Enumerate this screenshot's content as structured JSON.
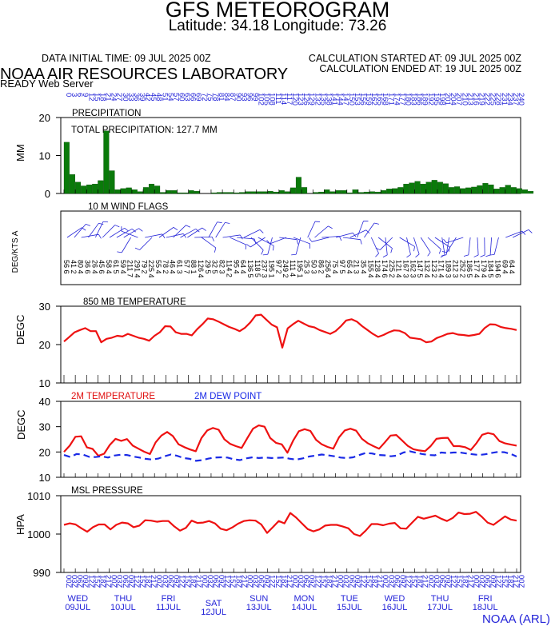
{
  "header": {
    "title": "GFS METEOROGRAM",
    "coords": "Latitude: 34.18 Longitude:  73.26",
    "data_initial_time": "DATA INITIAL TIME: 09 JUL 2025 00Z",
    "calc_started": "CALCULATION STARTED AT: 09 JUL 2025 00Z",
    "calc_ended": "CALCULATION ENDED AT: 19 JUL 2025 00Z",
    "lab": "NOAA AIR RESOURCES LABORATORY",
    "server": "READY Web Server"
  },
  "footer": {
    "credit": "NOAA (ARL)"
  },
  "chart_data": [
    {
      "type": "bar",
      "title": "PRECIPITATION",
      "annotation": "TOTAL PRECIPITATION: 127.7 MM",
      "ylabel": "MM",
      "ylim": [
        0,
        20
      ],
      "yticks": [
        0,
        10,
        20
      ],
      "x_step_hours": 3,
      "values": [
        13.5,
        5.0,
        3.0,
        2.0,
        2.3,
        2.5,
        3.4,
        16.5,
        6.0,
        1.0,
        1.3,
        1.5,
        1.0,
        0.5,
        1.6,
        2.5,
        2.0,
        0.3,
        0.8,
        0.8,
        0.2,
        0.2,
        0.8,
        0.6,
        0,
        0,
        0.2,
        0.3,
        0.3,
        0.3,
        0.2,
        0.3,
        0.5,
        0.5,
        0.5,
        0.5,
        0.6,
        0.4,
        0.8,
        0.5,
        1.5,
        4.3,
        1.6,
        0,
        0.3,
        0.4,
        1.0,
        0.5,
        0.8,
        0.8,
        0.2,
        1.0,
        0.3,
        0.4,
        0.5,
        0.4,
        0.8,
        1.2,
        1.3,
        1.6,
        2.5,
        2.8,
        3.2,
        2.5,
        3.0,
        3.5,
        3.0,
        2.6,
        1.6,
        1.8,
        1.3,
        1.5,
        1.7,
        2.1,
        2.7,
        2.3,
        1.2,
        1.6,
        2.2,
        1.6,
        1.3,
        1.0,
        0.6
      ]
    },
    {
      "type": "wind_flags",
      "title": "10 M  WIND FLAGS",
      "ylabel": "DEG/KTS  A",
      "labels": [
        "56 6",
        "41 2",
        "80 4",
        "36 6",
        "26 4",
        "45 6",
        "58 4",
        "61 5",
        "59 4",
        "211 7",
        "291 4",
        "79 2",
        "225 4",
        "55 4",
        "78 2",
        "46 4",
        "61 3",
        "57 7",
        "88 1",
        "126 4",
        "29 5",
        "32 5",
        "82 3",
        "114 2",
        "95 4",
        "64 4",
        "136 5",
        "118 5",
        "237 3",
        "195 1",
        "97 2",
        "249 2",
        "111 4",
        "195 1",
        "25 3",
        "50 3",
        "86 2",
        "256 4",
        "75 4",
        "97 5",
        "65 4",
        "21 3",
        "35 4",
        "155 4",
        "128 4",
        "174 6",
        "225 2",
        "121 4",
        "167 3",
        "162 3",
        "147 5",
        "132 4",
        "123 2",
        "171 4",
        "189 3",
        "212 3",
        "252 2",
        "186 5",
        "177 4",
        "179 4",
        "184 5",
        "194 6",
        "69 4",
        "64 4"
      ]
    },
    {
      "type": "line",
      "title": "850 MB  TEMPERATURE",
      "ylabel": "DEGC",
      "ylim": [
        10,
        30
      ],
      "yticks": [
        10,
        20,
        30
      ],
      "series": [
        {
          "name": "850 MB TEMPERATURE",
          "color": "#ee1111",
          "values": [
            20.8,
            22,
            23.2,
            23.8,
            24.3,
            23.5,
            23.5,
            20.6,
            21.5,
            21.8,
            22.3,
            22.1,
            22.8,
            22.3,
            21.8,
            21.5,
            21.0,
            22.3,
            23.2,
            24.8,
            24.7,
            23.2,
            22.8,
            22.8,
            22.4,
            24.0,
            25.3,
            26.8,
            26.6,
            26.0,
            25.3,
            24.6,
            24.1,
            23.5,
            24.4,
            25.8,
            27.6,
            27.8,
            26.5,
            25.2,
            24.5,
            19.2,
            24.2,
            25.3,
            26.2,
            25.5,
            24.8,
            24.5,
            23.8,
            23.3,
            22.8,
            23.5,
            24.8,
            26.3,
            26.6,
            26.0,
            24.8,
            23.8,
            22.8,
            22.0,
            22.5,
            23.2,
            23.7,
            23.6,
            23.0,
            21.8,
            21.6,
            21.4,
            20.6,
            20.8,
            21.7,
            22.2,
            22.8,
            23.0,
            22.6,
            22.5,
            22.3,
            22.5,
            22.8,
            24.3,
            25.3,
            25.2,
            24.6,
            24.3,
            24.1,
            23.8
          ]
        }
      ]
    },
    {
      "type": "line",
      "ylabel": "DEGC",
      "ylim": [
        10,
        40
      ],
      "yticks": [
        10,
        20,
        30,
        40
      ],
      "series": [
        {
          "name": "2M TEMPERATURE",
          "color": "#ee1111",
          "values": [
            20,
            22.5,
            26.0,
            26.2,
            21.8,
            21.2,
            18.5,
            19.3,
            22.8,
            25.2,
            24.4,
            25.1,
            22.5,
            21.3,
            20.1,
            19.2,
            23.8,
            26.5,
            27.9,
            26.3,
            23.0,
            21.9,
            21.0,
            20.3,
            25.5,
            28.5,
            29.5,
            28.8,
            25.0,
            23.2,
            22.3,
            21.6,
            25.5,
            29.2,
            30.5,
            30.0,
            25.5,
            23.6,
            23.0,
            19.7,
            24.5,
            28.2,
            29.0,
            28.3,
            24.8,
            23.0,
            22.0,
            21.3,
            25.8,
            28.5,
            29.2,
            28.4,
            25.2,
            23.5,
            22.3,
            21.3,
            23.8,
            26.5,
            26.7,
            24.6,
            22.4,
            21.1,
            20.6,
            20.3,
            22.3,
            25.2,
            25.5,
            25.6,
            22.3,
            22.3,
            21.9,
            20.8,
            23.5,
            26.8,
            27.5,
            27.0,
            24.3,
            23.4,
            22.9,
            22.5
          ]
        },
        {
          "name": "2M  DEW POINT",
          "color": "#1a2ae6",
          "dashed": true,
          "values": [
            18.8,
            18.0,
            19.2,
            19.0,
            18.1,
            18.0,
            18.3,
            17.8,
            18.6,
            18.9,
            18.8,
            18.2,
            17.8,
            17.3,
            17.0,
            17.4,
            18.3,
            19.0,
            18.5,
            17.6,
            17.3,
            16.5,
            16.8,
            17.4,
            17.8,
            17.9,
            17.8,
            17.1,
            16.8,
            17.5,
            17.9,
            17.6,
            17.8,
            17.6,
            17.7,
            17.8,
            17.3,
            17.0,
            17.5,
            18.2,
            18.6,
            19.0,
            18.7,
            18.3,
            17.8,
            17.6,
            17.9,
            18.8,
            19.6,
            19.4,
            18.8,
            18.7,
            18.3,
            18.6,
            19.8,
            20.3,
            19.7,
            19.2,
            18.8,
            18.7,
            19.8,
            19.6,
            19.8,
            19.8,
            19.4,
            19.1,
            18.8,
            19.1,
            19.6,
            20.0,
            19.9,
            19.3,
            18.2
          ]
        }
      ]
    },
    {
      "type": "line",
      "title": "MSL PRESSURE",
      "ylabel": "HPA",
      "ylim": [
        990,
        1010
      ],
      "yticks": [
        990,
        1000,
        1010
      ],
      "series": [
        {
          "name": "MSL PRESSURE",
          "color": "#ee1111",
          "values": [
            1002.4,
            1002.8,
            1002.5,
            1001.5,
            1000.6,
            1001.8,
            1002.5,
            1002.5,
            1001.2,
            1002.4,
            1003.0,
            1002.8,
            1001.8,
            1002.2,
            1003.6,
            1003.5,
            1003.2,
            1003.4,
            1003.4,
            1002.0,
            1000.9,
            1001.6,
            1003.5,
            1002.9,
            1003.0,
            1003.4,
            1002.8,
            1001.4,
            1001.0,
            1001.7,
            1002.7,
            1003.4,
            1003.6,
            1003.5,
            1002.5,
            1000.3,
            1001.8,
            1003.4,
            1002.8,
            1005.5,
            1004.3,
            1002.8,
            1001.3,
            1000.7,
            1001.2,
            1002.2,
            1002.4,
            1002.4,
            1002.0,
            1001.5,
            1000.0,
            999.5,
            1000.9,
            1002.6,
            1002.6,
            1002.3,
            1002.7,
            1002.9,
            1001.5,
            1001.4,
            1003.0,
            1004.5,
            1004.0,
            1004.4,
            1004.8,
            1004.0,
            1003.4,
            1004.2,
            1005.6,
            1005.2,
            1005.3,
            1005.8,
            1004.5,
            1003.0,
            1002.4,
            1003.5,
            1004.6,
            1003.8,
            1003.5
          ]
        }
      ]
    }
  ],
  "panel_labels": {
    "precip_title": "PRECIPITATION",
    "precip_total": "TOTAL PRECIPITATION: 127.7 MM",
    "wind_title": "10 M  WIND FLAGS",
    "temp850_title": "850 MB  TEMPERATURE",
    "t2m_title": "2M TEMPERATURE",
    "dew_title": "2M  DEW POINT",
    "msl_title": "MSL PRESSURE"
  },
  "top_hour_labels": [
    "0",
    "3",
    "6",
    "9",
    "12",
    "15",
    "18",
    "21",
    "24",
    "27",
    "30",
    "33",
    "36",
    "39",
    "42",
    "45",
    "48",
    "51",
    "54",
    "57",
    "60",
    "63",
    "66",
    "69",
    "72",
    "75",
    "78",
    "81",
    "84",
    "87",
    "90",
    "93",
    "96",
    "99",
    "102",
    "105",
    "108",
    "111",
    "114",
    "117",
    "120",
    "123",
    "126",
    "129",
    "132",
    "135",
    "138",
    "141",
    "144",
    "147",
    "150",
    "153",
    "156",
    "159",
    "162",
    "165",
    "168",
    "171",
    "174",
    "177",
    "180",
    "183",
    "186",
    "189",
    "192",
    "195",
    "198",
    "201",
    "204",
    "207",
    "210",
    "213",
    "216",
    "219",
    "222",
    "225",
    "228",
    "231",
    "234",
    "237",
    "240"
  ],
  "bottom_utc_labels": [
    "00Z",
    "03Z",
    "06Z",
    "09Z",
    "12Z",
    "15Z",
    "18Z",
    "21Z"
  ],
  "days": [
    {
      "dow": "WED",
      "date": "09JUL"
    },
    {
      "dow": "THU",
      "date": "10JUL"
    },
    {
      "dow": "FRI",
      "date": "11JUL"
    },
    {
      "dow": "SAT",
      "date": "12JUL"
    },
    {
      "dow": "SUN",
      "date": "13JUL"
    },
    {
      "dow": "MON",
      "date": "14JUL"
    },
    {
      "dow": "TUE",
      "date": "15JUL"
    },
    {
      "dow": "WED",
      "date": "16JUL"
    },
    {
      "dow": "THU",
      "date": "17JUL"
    },
    {
      "dow": "FRI",
      "date": "18JUL"
    }
  ],
  "colors": {
    "precip_bar": "#0a7a0a",
    "temp": "#ee1111",
    "dew": "#1a2ae6",
    "wind": "#2424d8",
    "axis_labels_blue": "#2424d8"
  }
}
